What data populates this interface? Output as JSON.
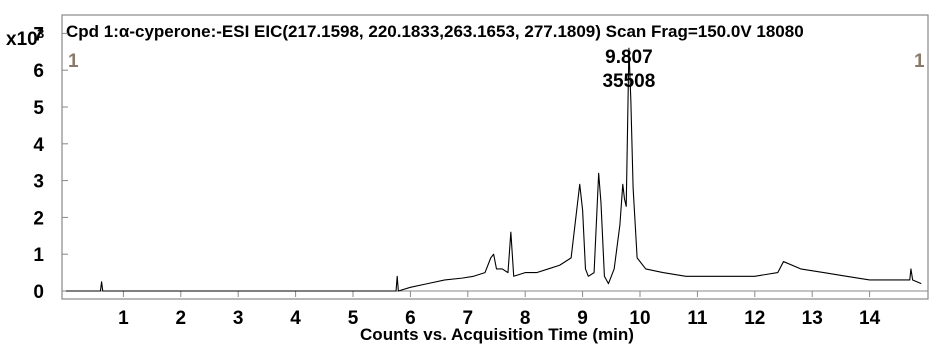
{
  "chart_data": {
    "type": "line",
    "title": "Cpd 1:α-cyperone:-ESI EIC(217.1598, 220.1833,263.1653, 277.1809) Scan Frag=150.0V 18080",
    "xlabel": "Counts vs. Acquisition Time (min)",
    "ylabel": "",
    "y_multiplier_label": "x10",
    "y_multiplier_exp": "3",
    "xlim": [
      0,
      15
    ],
    "ylim": [
      0,
      7.5
    ],
    "x_ticks": [
      "1",
      "2",
      "3",
      "4",
      "5",
      "6",
      "7",
      "8",
      "9",
      "10",
      "11",
      "12",
      "13",
      "14"
    ],
    "y_ticks": [
      "0",
      "1",
      "2",
      "3",
      "4",
      "5",
      "6",
      "7"
    ],
    "grid": false,
    "peak_label": {
      "x": 9.807,
      "time": "9.807",
      "height": "35508"
    },
    "corner_markers": {
      "left": "1",
      "right": "1"
    },
    "series": [
      {
        "color": "#000000",
        "x": [
          0,
          0.6,
          0.62,
          0.64,
          5.75,
          5.77,
          5.79,
          6.0,
          6.3,
          6.6,
          6.9,
          7.1,
          7.3,
          7.4,
          7.45,
          7.5,
          7.6,
          7.7,
          7.75,
          7.8,
          8.0,
          8.2,
          8.4,
          8.6,
          8.8,
          8.95,
          9.0,
          9.05,
          9.1,
          9.2,
          9.28,
          9.32,
          9.38,
          9.45,
          9.55,
          9.65,
          9.7,
          9.73,
          9.76,
          9.807,
          9.84,
          9.88,
          9.95,
          10.1,
          10.4,
          10.8,
          11.2,
          11.6,
          12.0,
          12.4,
          12.5,
          12.8,
          13.2,
          13.6,
          14.0,
          14.4,
          14.7,
          14.72,
          14.75,
          14.9
        ],
        "y": [
          0,
          0,
          0.25,
          0,
          0,
          0.4,
          0,
          0.1,
          0.2,
          0.3,
          0.35,
          0.4,
          0.5,
          0.9,
          1.0,
          0.6,
          0.6,
          0.5,
          1.6,
          0.4,
          0.5,
          0.5,
          0.6,
          0.7,
          0.9,
          2.9,
          2.2,
          0.6,
          0.4,
          0.5,
          3.2,
          2.4,
          0.4,
          0.2,
          0.6,
          1.8,
          2.9,
          2.5,
          2.3,
          6.6,
          5.2,
          2.8,
          0.9,
          0.6,
          0.5,
          0.4,
          0.4,
          0.4,
          0.4,
          0.5,
          0.8,
          0.6,
          0.5,
          0.4,
          0.3,
          0.3,
          0.3,
          0.6,
          0.3,
          0.2
        ]
      }
    ]
  }
}
